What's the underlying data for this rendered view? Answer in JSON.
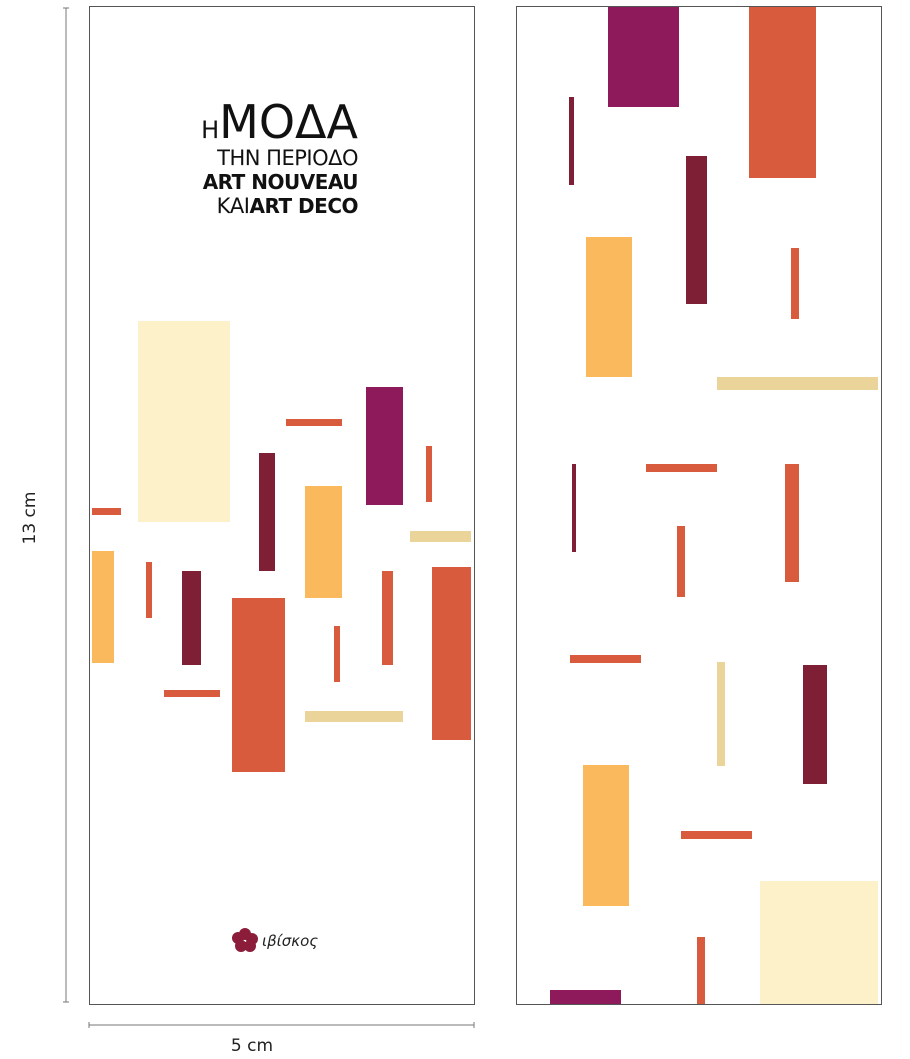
{
  "cover": {
    "title": {
      "line1": {
        "small": "Η",
        "large": "ΜΟΔΑ"
      },
      "line2": "ΤΗΝ ΠΕΡΙΟΔΟ",
      "line3": "ART NOUVEAU",
      "line4": {
        "light": "ΚΑΙ",
        "bold": "ART DECO"
      }
    },
    "publisher": "ιβίσκος"
  },
  "dimensions": {
    "height": "13 cm",
    "width": "5 cm"
  }
}
